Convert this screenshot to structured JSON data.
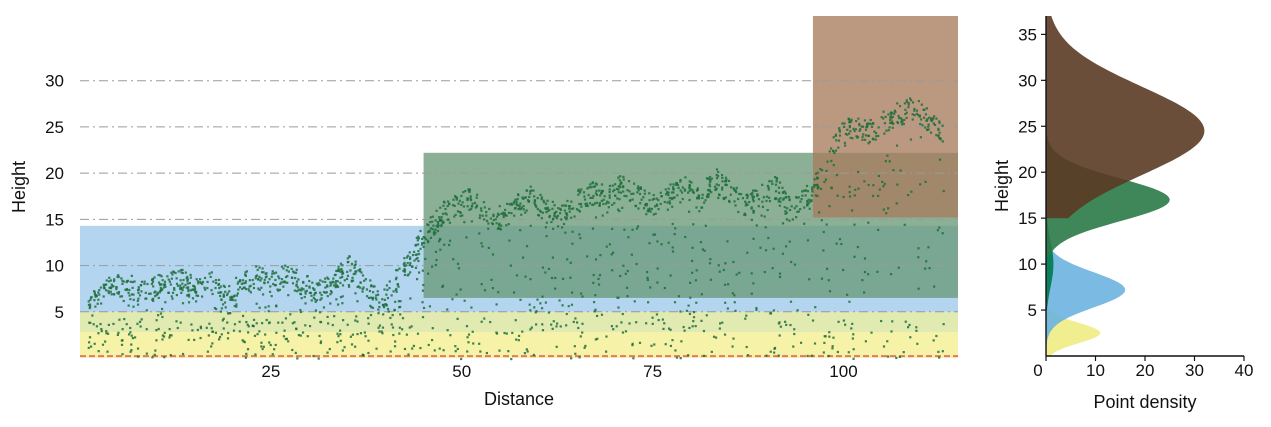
{
  "chart_data": [
    {
      "type": "scatter",
      "xlabel": "Distance",
      "ylabel": "Height",
      "xlim": [
        0,
        115
      ],
      "ylim": [
        0,
        37
      ],
      "xticks": [
        "25",
        "50",
        "75",
        "100"
      ],
      "yticks": [
        "5",
        "10",
        "15",
        "20",
        "25",
        "30"
      ],
      "grid": "horizontal dash-dot",
      "layers": [
        {
          "x": [
            0,
            115
          ],
          "y": [
            0,
            2.8
          ],
          "color": "#f3ee8e"
        },
        {
          "x": [
            0,
            115
          ],
          "y": [
            2.8,
            5
          ],
          "color": "#d8e49b"
        },
        {
          "x": [
            0,
            115
          ],
          "y": [
            5,
            14.3
          ],
          "color": "#9ec9ea"
        },
        {
          "x": [
            45,
            115
          ],
          "y": [
            6.5,
            22.2
          ],
          "color": "#6a9a78"
        },
        {
          "x": [
            96,
            115
          ],
          "y": [
            15.2,
            37
          ],
          "color": "#a87c5e"
        }
      ],
      "ground_line": {
        "y": 0.2,
        "color": "#e2786a"
      },
      "point_color": "#1f6e3c",
      "profile": [
        {
          "x": 1,
          "y": 6.5
        },
        {
          "x": 3,
          "y": 7.5
        },
        {
          "x": 6,
          "y": 8
        },
        {
          "x": 8,
          "y": 7.2
        },
        {
          "x": 10,
          "y": 7.8
        },
        {
          "x": 13,
          "y": 8.5
        },
        {
          "x": 15,
          "y": 7.5
        },
        {
          "x": 17,
          "y": 8.3
        },
        {
          "x": 19,
          "y": 6.8
        },
        {
          "x": 21,
          "y": 8
        },
        {
          "x": 23,
          "y": 8.8
        },
        {
          "x": 25,
          "y": 8.2
        },
        {
          "x": 27,
          "y": 9
        },
        {
          "x": 29,
          "y": 8
        },
        {
          "x": 31,
          "y": 7.2
        },
        {
          "x": 33,
          "y": 8.5
        },
        {
          "x": 35,
          "y": 10
        },
        {
          "x": 37,
          "y": 8.5
        },
        {
          "x": 39,
          "y": 6
        },
        {
          "x": 41,
          "y": 8
        },
        {
          "x": 43,
          "y": 10.5
        },
        {
          "x": 45,
          "y": 13.5
        },
        {
          "x": 47,
          "y": 15.5
        },
        {
          "x": 49,
          "y": 16.5
        },
        {
          "x": 51,
          "y": 17.2
        },
        {
          "x": 53,
          "y": 16
        },
        {
          "x": 55,
          "y": 15.2
        },
        {
          "x": 57,
          "y": 16.5
        },
        {
          "x": 59,
          "y": 17.5
        },
        {
          "x": 61,
          "y": 16
        },
        {
          "x": 63,
          "y": 15.5
        },
        {
          "x": 65,
          "y": 17
        },
        {
          "x": 67,
          "y": 18
        },
        {
          "x": 69,
          "y": 17.5
        },
        {
          "x": 71,
          "y": 18.8
        },
        {
          "x": 73,
          "y": 17.5
        },
        {
          "x": 75,
          "y": 16.5
        },
        {
          "x": 77,
          "y": 17.5
        },
        {
          "x": 79,
          "y": 18.5
        },
        {
          "x": 81,
          "y": 17.2
        },
        {
          "x": 83,
          "y": 19.5
        },
        {
          "x": 85,
          "y": 18
        },
        {
          "x": 87,
          "y": 16.5
        },
        {
          "x": 89,
          "y": 17.5
        },
        {
          "x": 91,
          "y": 18.5
        },
        {
          "x": 93,
          "y": 16
        },
        {
          "x": 95,
          "y": 17.5
        },
        {
          "x": 97,
          "y": 19.5
        },
        {
          "x": 99,
          "y": 24
        },
        {
          "x": 101,
          "y": 25
        },
        {
          "x": 103,
          "y": 24.5
        },
        {
          "x": 105,
          "y": 25.5
        },
        {
          "x": 107,
          "y": 26.5
        },
        {
          "x": 109,
          "y": 27
        },
        {
          "x": 111,
          "y": 26
        },
        {
          "x": 113,
          "y": 24.5
        }
      ]
    },
    {
      "type": "area",
      "xlabel": "Point density",
      "ylabel": "Height",
      "xlim": [
        0,
        40
      ],
      "ylim": [
        0,
        37
      ],
      "xticks": [
        "0",
        "10",
        "20",
        "30",
        "40"
      ],
      "yticks": [
        "0",
        "5",
        "10",
        "15",
        "20",
        "25",
        "30",
        "35"
      ],
      "series": [
        {
          "color": "#f0ec84",
          "peak_height": 2.5,
          "peak_density": 11,
          "spread": 1.1,
          "range": [
            0,
            5
          ]
        },
        {
          "color": "#6bb2e0",
          "peak_height": 7.2,
          "peak_density": 16,
          "spread": 1.9,
          "range": [
            0,
            13
          ]
        },
        {
          "color": "#007a4a",
          "peak_height": 10,
          "peak_density": 1.5,
          "spread": 2.5,
          "range": [
            5,
            15
          ]
        },
        {
          "color": "#2a7a47",
          "peak_height": 17,
          "peak_density": 25,
          "spread": 2.3,
          "range": [
            11,
            24
          ]
        },
        {
          "color": "#5a3b24",
          "peak_height": 24.5,
          "peak_density": 32,
          "spread": 4.8,
          "range": [
            15,
            37
          ]
        }
      ]
    }
  ]
}
